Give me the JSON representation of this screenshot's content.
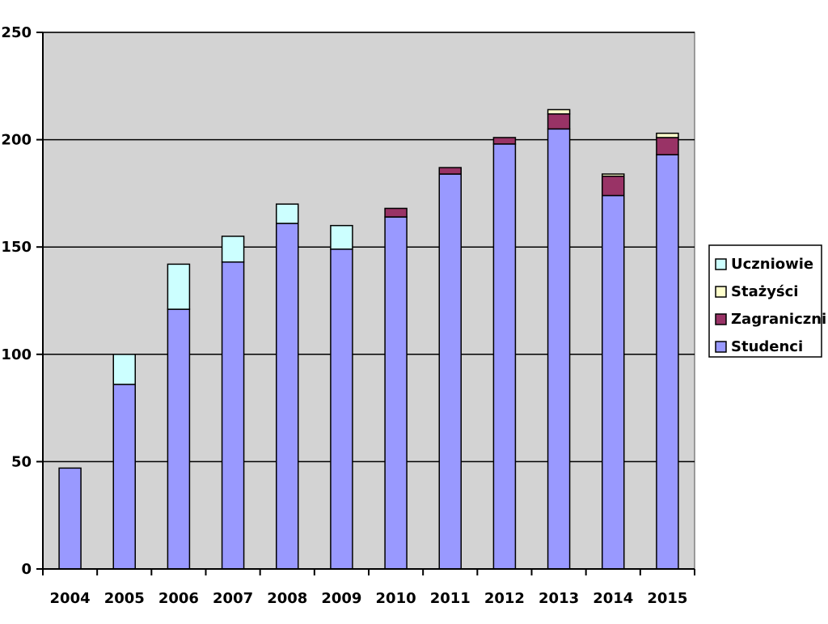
{
  "chart_data": {
    "type": "bar",
    "stacked": true,
    "title": "",
    "xlabel": "",
    "ylabel": "",
    "categories": [
      "2004",
      "2005",
      "2006",
      "2007",
      "2008",
      "2009",
      "2010",
      "2011",
      "2012",
      "2013",
      "2014",
      "2015"
    ],
    "ylim": [
      0,
      250
    ],
    "yticks": [
      0,
      50,
      100,
      150,
      200,
      250
    ],
    "grid": true,
    "legend_position": "right",
    "background_color": "#d3d3d3",
    "series": [
      {
        "name": "Studenci",
        "color": "#9999ff",
        "values": [
          47,
          86,
          121,
          143,
          161,
          149,
          164,
          184,
          198,
          205,
          174,
          193
        ]
      },
      {
        "name": "Zagraniczni",
        "color": "#993366",
        "values": [
          0,
          0,
          0,
          0,
          0,
          0,
          4,
          3,
          3,
          7,
          9,
          8
        ]
      },
      {
        "name": "Stażyści",
        "color": "#ffffcc",
        "values": [
          0,
          0,
          0,
          0,
          0,
          0,
          0,
          0,
          0,
          2,
          1,
          2
        ]
      },
      {
        "name": "Uczniowie",
        "color": "#ccffff",
        "values": [
          0,
          14,
          21,
          12,
          9,
          11,
          0,
          0,
          0,
          0,
          0,
          0
        ]
      }
    ],
    "legend_order": [
      "Uczniowie",
      "Stażyści",
      "Zagraniczni",
      "Studenci"
    ]
  }
}
